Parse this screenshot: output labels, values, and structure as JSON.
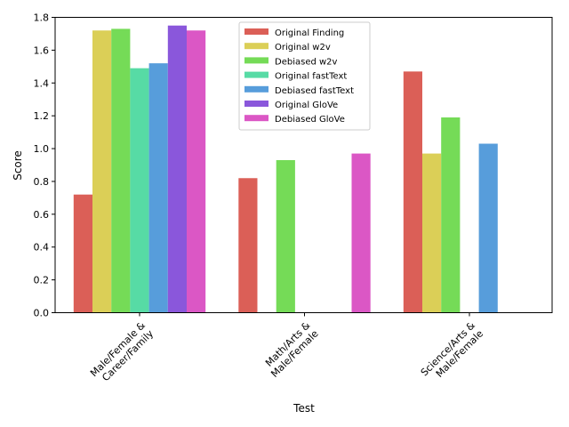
{
  "chart_data": {
    "type": "bar",
    "title": "",
    "xlabel": "Test",
    "ylabel": "Score",
    "ylim": [
      0,
      1.8
    ],
    "yticks": [
      0.0,
      0.2,
      0.4,
      0.6,
      0.8,
      1.0,
      1.2,
      1.4,
      1.6,
      1.8
    ],
    "ytick_labels": [
      "0.0",
      "0.2",
      "0.4",
      "0.6",
      "0.8",
      "1.0",
      "1.2",
      "1.4",
      "1.6",
      "1.8"
    ],
    "categories": [
      [
        "Male/Female &",
        "Career/Family"
      ],
      [
        "Math/Arts &",
        "Male/Female"
      ],
      [
        "Science/Arts &",
        "Male/Female"
      ]
    ],
    "legend_position": "top-center",
    "grid": false,
    "series": [
      {
        "name": "Original Finding",
        "color": "#db5f57",
        "values": [
          0.72,
          0.82,
          1.47
        ]
      },
      {
        "name": "Original w2v",
        "color": "#dbcf57",
        "values": [
          1.72,
          0,
          0.97
        ]
      },
      {
        "name": "Debiased w2v",
        "color": "#75db57",
        "values": [
          1.73,
          0.93,
          1.19
        ]
      },
      {
        "name": "Original fastText",
        "color": "#57dba5",
        "values": [
          1.49,
          0,
          0
        ]
      },
      {
        "name": "Debiased fastText",
        "color": "#579ddb",
        "values": [
          1.52,
          0,
          1.03
        ]
      },
      {
        "name": "Original GloVe",
        "color": "#8a57db",
        "values": [
          1.75,
          0,
          0
        ]
      },
      {
        "name": "Debiased GloVe",
        "color": "#db57c5",
        "values": [
          1.72,
          0.97,
          0
        ]
      }
    ]
  }
}
